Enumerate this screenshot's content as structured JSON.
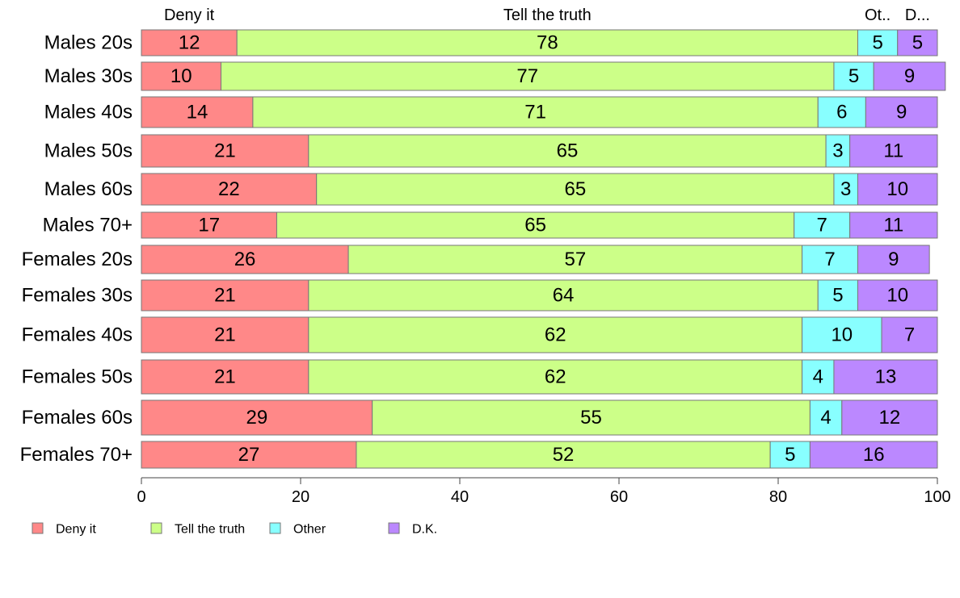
{
  "chart_data": {
    "type": "bar",
    "orientation": "horizontal",
    "stacked": true,
    "categories": [
      "Males 20s",
      "Males 30s",
      "Males 40s",
      "Males 50s",
      "Males 60s",
      "Males 70+",
      "Females 20s",
      "Females 30s",
      "Females 40s",
      "Females 50s",
      "Females 60s",
      "Females 70+"
    ],
    "series": [
      {
        "name": "Deny it",
        "color": "#FF8888",
        "values": [
          12,
          10,
          14,
          21,
          22,
          17,
          26,
          21,
          21,
          21,
          29,
          27
        ]
      },
      {
        "name": "Tell the truth",
        "color": "#CCFF88",
        "values": [
          78,
          77,
          71,
          65,
          65,
          65,
          57,
          64,
          62,
          62,
          55,
          52
        ]
      },
      {
        "name": "Other",
        "color": "#88FFFF",
        "values": [
          5,
          5,
          6,
          3,
          3,
          7,
          7,
          5,
          10,
          4,
          4,
          5
        ]
      },
      {
        "name": "D.K.",
        "color": "#BB88FF",
        "values": [
          5,
          9,
          9,
          11,
          10,
          11,
          9,
          10,
          7,
          13,
          12,
          16
        ]
      }
    ],
    "top_labels": [
      "Deny it",
      "Tell the truth",
      "Ot..",
      "D..."
    ],
    "xlim": [
      0,
      100
    ],
    "xticks": [
      0,
      20,
      40,
      60,
      80,
      100
    ],
    "grid": false,
    "legend_position": "bottom",
    "xlabel": "",
    "ylabel": "",
    "title": ""
  }
}
